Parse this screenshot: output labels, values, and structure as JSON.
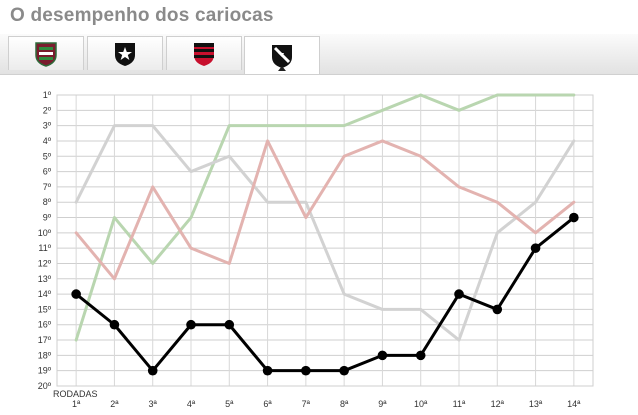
{
  "title": "O desempenho dos cariocas",
  "tabs": [
    {
      "team_icon": "fluminense-crest-icon",
      "active": false
    },
    {
      "team_icon": "botafogo-crest-icon",
      "active": false
    },
    {
      "team_icon": "flamengo-crest-icon",
      "active": false
    },
    {
      "team_icon": "vasco-crest-icon",
      "active": true
    }
  ],
  "chart_data": {
    "type": "line",
    "title": "O desempenho dos cariocas",
    "xlabel": "RODADAS",
    "ylabel": "",
    "categories": [
      "1ª",
      "2ª",
      "3ª",
      "4ª",
      "5ª",
      "6ª",
      "7ª",
      "8ª",
      "9ª",
      "10ª",
      "11ª",
      "12ª",
      "13ª",
      "14ª"
    ],
    "y_tick_labels": [
      "1º",
      "2º",
      "3º",
      "4º",
      "5º",
      "6º",
      "7º",
      "8º",
      "9º",
      "10º",
      "11º",
      "12º",
      "13º",
      "14º",
      "15º",
      "16º",
      "17º",
      "18º",
      "19º",
      "20º"
    ],
    "ylim": [
      1,
      20
    ],
    "y_inverted": true,
    "grid": true,
    "series": [
      {
        "team": "fluminense",
        "color": "#b9d6b0",
        "values": [
          17,
          9,
          12,
          9,
          3,
          3,
          3,
          3,
          2,
          1,
          2,
          1,
          1,
          1
        ]
      },
      {
        "team": "botafogo",
        "color": "#d2d2d2",
        "values": [
          8,
          3,
          3,
          6,
          5,
          8,
          8,
          14,
          15,
          15,
          17,
          10,
          8,
          4
        ]
      },
      {
        "team": "flamengo",
        "color": "#e3b3b0",
        "values": [
          10,
          13,
          7,
          11,
          12,
          4,
          9,
          5,
          4,
          5,
          7,
          8,
          10,
          8
        ]
      },
      {
        "team": "vasco",
        "color": "#000000",
        "highlighted": true,
        "values": [
          14,
          16,
          19,
          16,
          16,
          19,
          19,
          19,
          18,
          18,
          14,
          15,
          11,
          9
        ]
      }
    ]
  }
}
